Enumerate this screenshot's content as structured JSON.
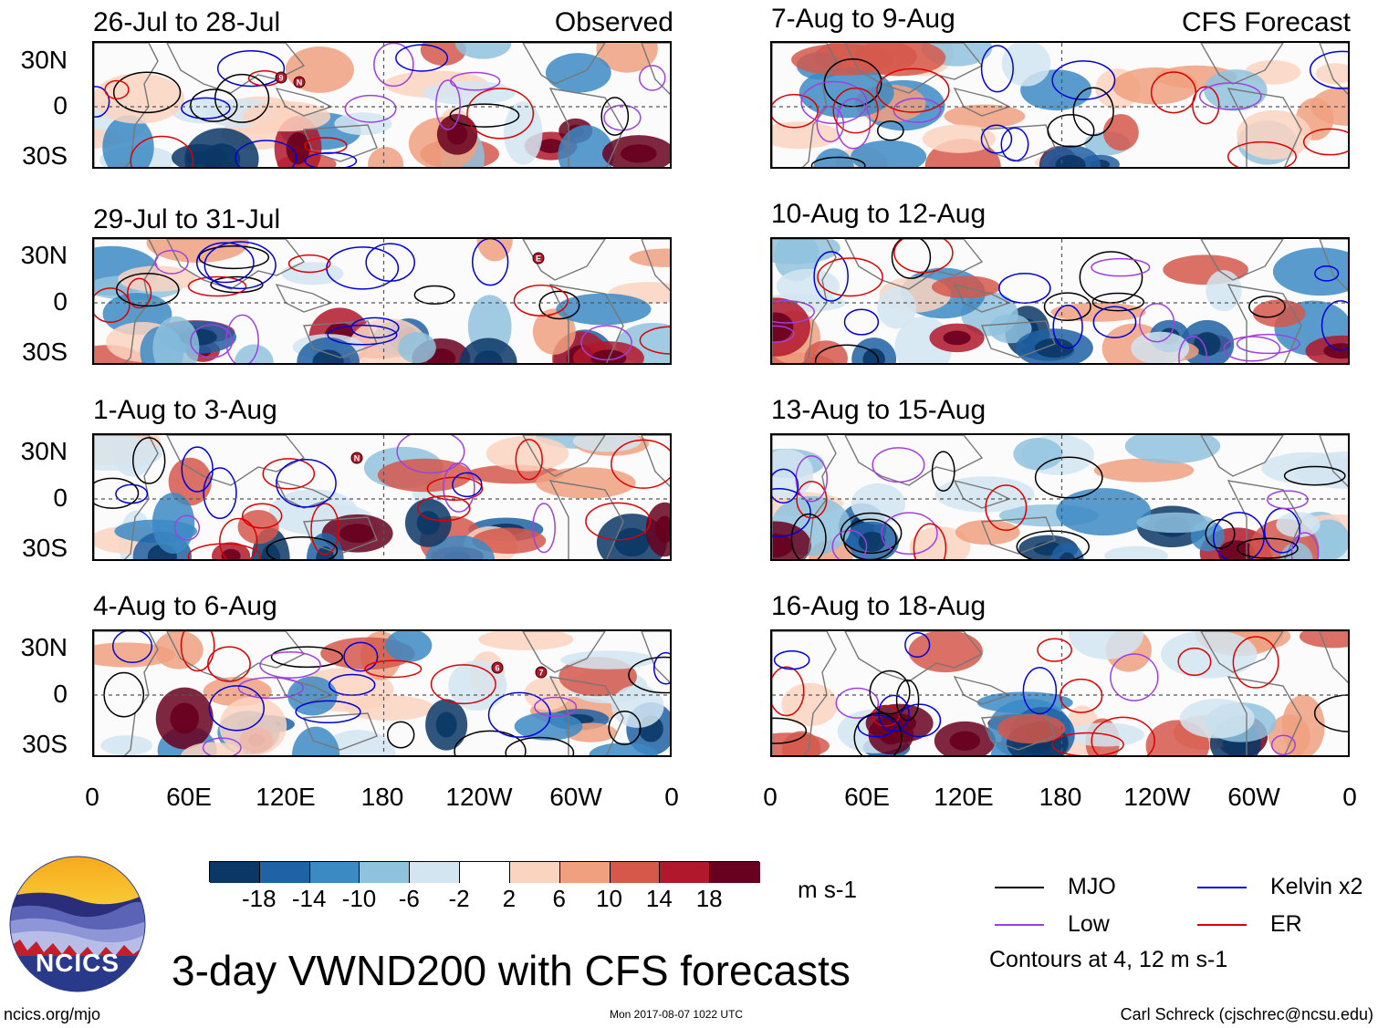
{
  "titles": {
    "observed_label": "Observed",
    "forecast_label": "CFS Forecast"
  },
  "panels": {
    "observed": [
      {
        "date": "26-Jul to 28-Jul"
      },
      {
        "date": "29-Jul to 31-Jul"
      },
      {
        "date": "1-Aug to 3-Aug"
      },
      {
        "date": "4-Aug to 6-Aug"
      }
    ],
    "forecast": [
      {
        "date": "7-Aug to 9-Aug"
      },
      {
        "date": "10-Aug to 12-Aug"
      },
      {
        "date": "13-Aug to 15-Aug"
      },
      {
        "date": "16-Aug to 18-Aug"
      }
    ]
  },
  "axes": {
    "y_labels": [
      "30N",
      "0",
      "30S"
    ],
    "x_labels": [
      "0",
      "60E",
      "120E",
      "180",
      "120W",
      "60W",
      "0"
    ]
  },
  "colorbar": {
    "labels": [
      "-18",
      "-14",
      "-10",
      "-6",
      "-2",
      "2",
      "6",
      "10",
      "14",
      "18"
    ],
    "units": "m s-1",
    "colors": [
      "#0b3766",
      "#1f62a5",
      "#3c8ac4",
      "#8fc2de",
      "#d2e5f1",
      "#ffffff",
      "#fbd4c0",
      "#f0a07f",
      "#d5584b",
      "#b1182b",
      "#68001f"
    ]
  },
  "legend": {
    "mjo": {
      "label": "MJO",
      "color": "#000000"
    },
    "kelvin": {
      "label": "Kelvin x2",
      "color": "#0000dd"
    },
    "low": {
      "label": "Low",
      "color": "#a040e0"
    },
    "er": {
      "label": "ER",
      "color": "#dd0000"
    },
    "note": "Contours at 4, 12 m s-1"
  },
  "logo": {
    "text": "NCICS"
  },
  "footer": {
    "main_title": "3-day VWND200 with CFS forecasts",
    "url": "ncics.org/mjo",
    "timestamp": "Mon 2017-08-07 1022 UTC",
    "credit": "Carl Schreck (cjschrec@ncsu.edu)"
  },
  "storm_markers": [
    "9",
    "N",
    "E",
    "N",
    "6",
    "7"
  ]
}
